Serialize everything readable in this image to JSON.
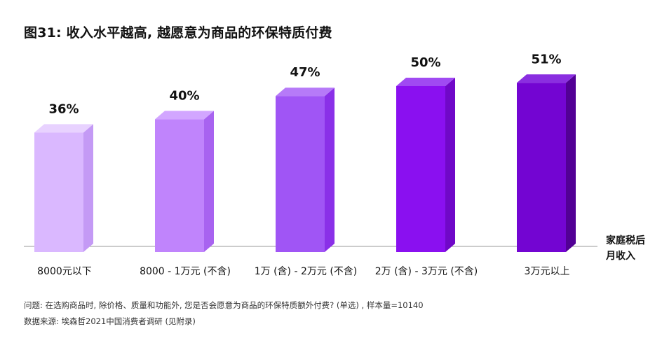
{
  "header": {
    "title": "图31: 收入水平越高, 越愿意为商品的环保特质付费"
  },
  "chart_data": {
    "type": "bar",
    "title": "图31: 收入水平越高, 越愿意为商品的环保特质付费",
    "xlabel": "家庭税后月收入",
    "xlabel_lines": [
      "家庭税后",
      "月收入"
    ],
    "ylabel": "",
    "categories": [
      "8000元以下",
      "8000 - 1万元 (不含)",
      "1万 (含) - 2万元 (不含)",
      "2万 (含) - 3万元 (不含)",
      "3万元以上"
    ],
    "values": [
      36,
      40,
      47,
      50,
      51
    ],
    "value_labels": [
      "36%",
      "40%",
      "47%",
      "50%",
      "51%"
    ],
    "unit": "%",
    "ylim": [
      0,
      60
    ],
    "grid": false,
    "legend": "none",
    "colors": {
      "front": [
        "#dab8ff",
        "#c084fc",
        "#a055f5",
        "#8a10f0",
        "#7305d2"
      ],
      "side": [
        "#c49af5",
        "#a863f0",
        "#8a30e8",
        "#7008c8",
        "#520095"
      ],
      "top": [
        "#e8d2ff",
        "#d2a6ff",
        "#b67af8",
        "#a04af2",
        "#8a2ee0"
      ],
      "baseline": "#999999"
    }
  },
  "footer": {
    "question": "问题: 在选购商品时, 除价格、质量和功能外, 您是否会愿意为商品的环保特质额外付费? (单选) , 样本量=10140",
    "source": "数据来源: 埃森哲2021中国消费者调研 (见附录)"
  }
}
